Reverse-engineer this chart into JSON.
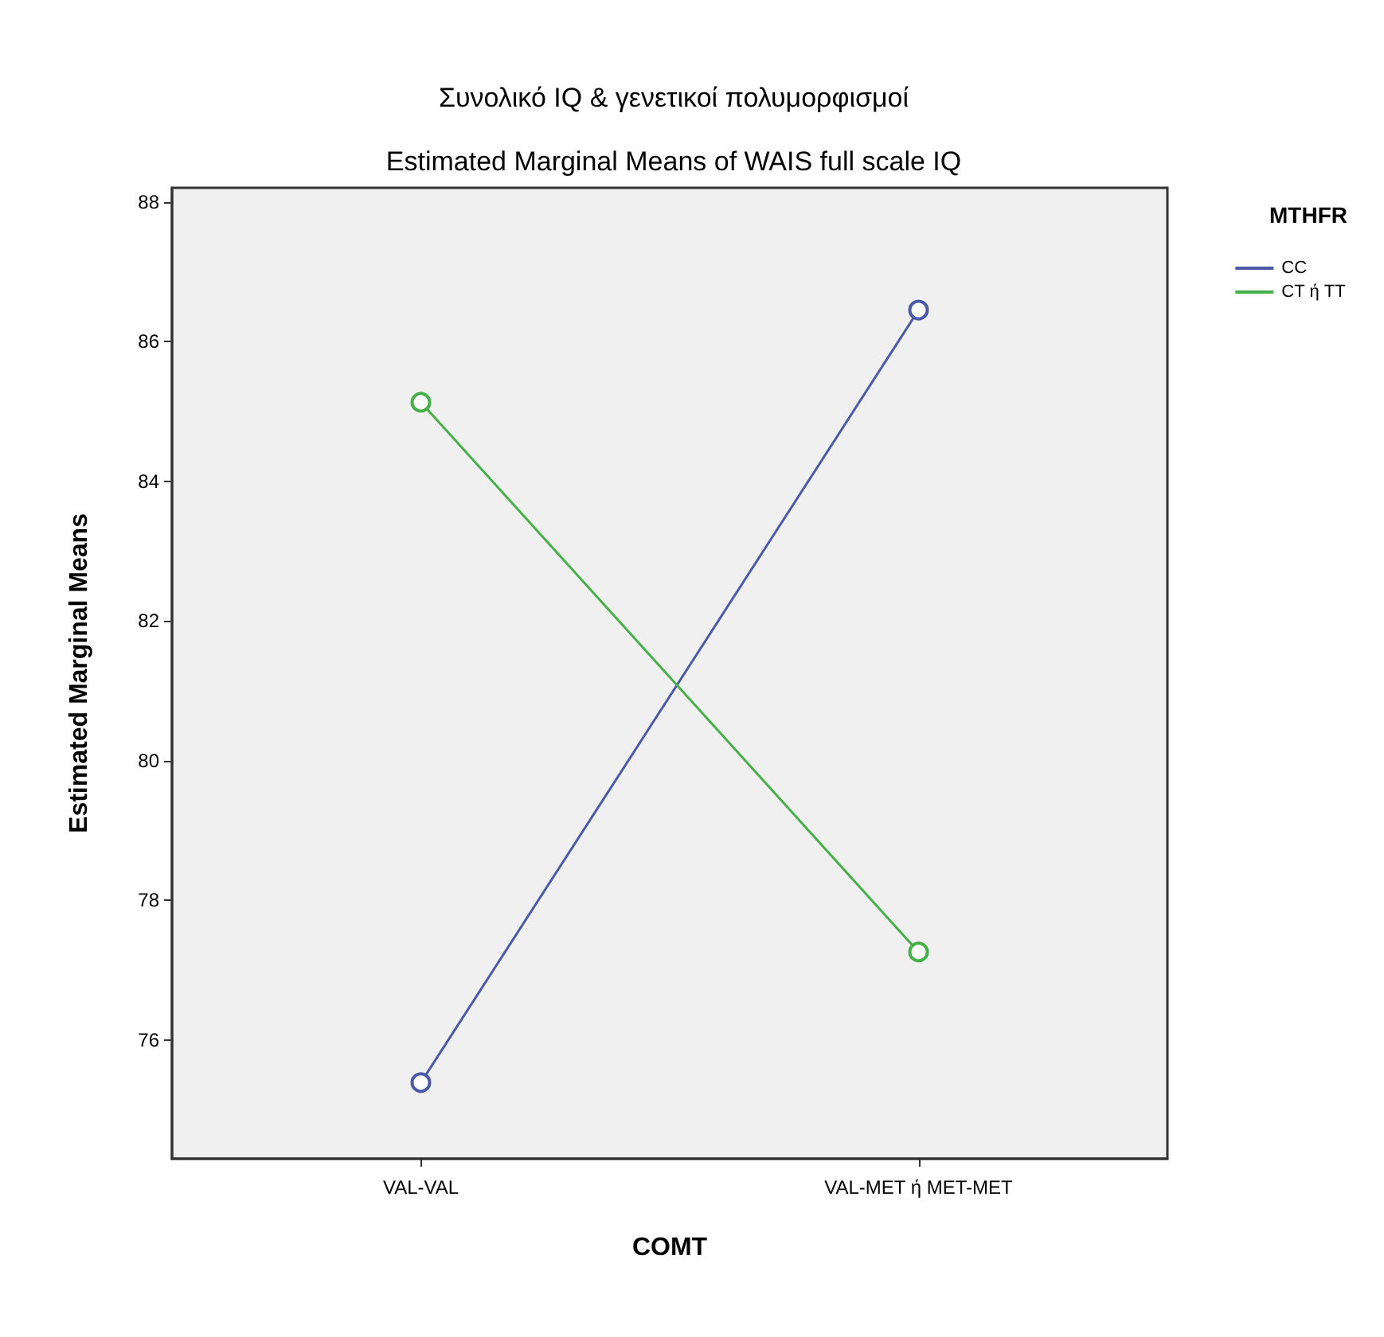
{
  "chart_data": {
    "type": "line",
    "title": "Συνολικό IQ & γενετικοί πολυμορφισμοί",
    "subtitle": "Estimated Marginal Means of WAIS full scale IQ",
    "xlabel": "COMT",
    "ylabel": "Estimated Marginal Means",
    "legend_title": "MTHFR",
    "categories": [
      "VAL-VAL",
      "VAL-MET ή MET-MET"
    ],
    "series": [
      {
        "name": "CC",
        "color": "#4a5aa8",
        "values": [
          75.39,
          86.45
        ]
      },
      {
        "name": "CT ή TT",
        "color": "#45b048",
        "values": [
          85.13,
          77.26
        ]
      }
    ],
    "ylim": [
      74.3,
      88.2
    ],
    "yticks": [
      76,
      78,
      80,
      82,
      84,
      86,
      88
    ],
    "grid": false,
    "legend": "top right",
    "marker": "circle",
    "line_style": "solid"
  }
}
